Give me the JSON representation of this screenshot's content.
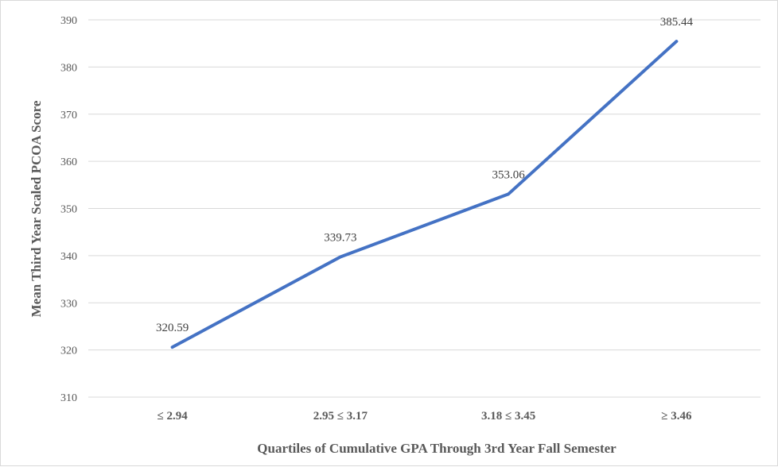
{
  "chart_data": {
    "type": "line",
    "title": "",
    "xlabel": "Quartiles of Cumulative GPA Through 3rd Year Fall Semester",
    "ylabel": "Mean Third Year Scaled PCOA Score",
    "categories": [
      "≤ 2.94",
      "2.95 ≤ 3.17",
      "3.18 ≤ 3.45",
      "≥ 3.46"
    ],
    "values": [
      320.59,
      339.73,
      353.06,
      385.44
    ],
    "data_labels": [
      "320.59",
      "339.73",
      "353.06",
      "385.44"
    ],
    "ylim": [
      310,
      390
    ],
    "yticks": [
      310,
      320,
      330,
      340,
      350,
      360,
      370,
      380,
      390
    ],
    "grid": true,
    "legend": "none",
    "line_color": "#4472c4"
  }
}
